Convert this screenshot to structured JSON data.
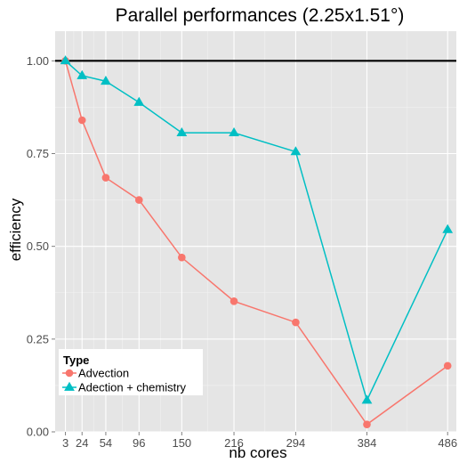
{
  "chart_data": {
    "type": "line",
    "title": "Parallel performances (2.25x1.51°)",
    "xlabel": "nb cores",
    "ylabel": "efficiency",
    "x": [
      3,
      24,
      54,
      96,
      150,
      216,
      294,
      384,
      486
    ],
    "xticks": [
      "3",
      "24",
      "54",
      "96",
      "150",
      "216",
      "294",
      "384",
      "486"
    ],
    "yticks": [
      "0.00",
      "0.25",
      "0.50",
      "0.75",
      "1.00"
    ],
    "xlim": [
      -10,
      497
    ],
    "ylim": [
      0,
      1.08
    ],
    "reference_line": 1.0,
    "grid": true,
    "legend": {
      "title": "Type",
      "placement": "bottom-left"
    },
    "series": [
      {
        "name": "Advection",
        "marker": "circle",
        "color": "#f8766d",
        "values": [
          1.0,
          0.84,
          0.685,
          0.625,
          0.47,
          0.352,
          0.295,
          0.02,
          0.178
        ]
      },
      {
        "name": "Adection + chemistry",
        "marker": "triangle",
        "color": "#00bfc4",
        "values": [
          1.0,
          0.96,
          0.945,
          0.888,
          0.806,
          0.806,
          0.755,
          0.085,
          0.545
        ]
      }
    ]
  }
}
